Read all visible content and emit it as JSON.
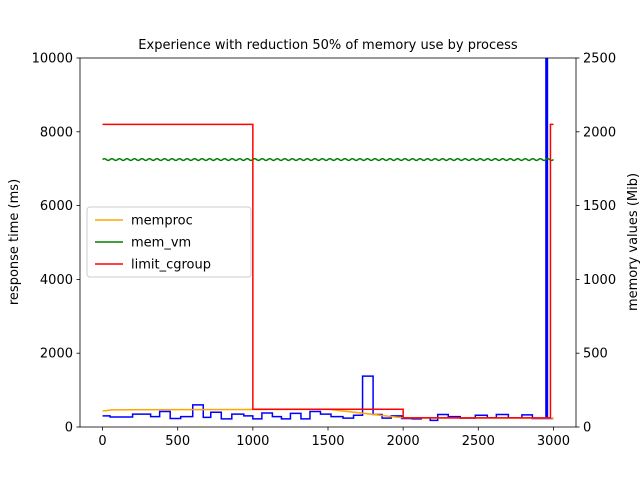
{
  "chart_data": {
    "type": "line",
    "title": "Experience with reduction 50% of memory use by process",
    "xlabel": "",
    "ylabel_left": "response time (ms)",
    "ylabel_right": "memory values (Mib)",
    "xlim": [
      -150,
      3150
    ],
    "ylim_left": [
      0,
      10000
    ],
    "ylim_right": [
      0,
      2500
    ],
    "x_ticks": [
      0,
      500,
      1000,
      1500,
      2000,
      2500,
      3000
    ],
    "y_left_ticks": [
      0,
      2000,
      4000,
      6000,
      8000,
      10000
    ],
    "y_right_ticks": [
      0,
      500,
      1000,
      1500,
      2000,
      2500
    ],
    "grid": false,
    "legend": {
      "placement": "center-left",
      "entries": [
        "memproc",
        "mem_vm",
        "limit_cgroup"
      ]
    },
    "series": [
      {
        "name": "memproc",
        "axis": "right",
        "color": "#ffa500",
        "kind": "line",
        "points": [
          [
            0,
            108
          ],
          [
            30,
            112
          ],
          [
            60,
            116
          ],
          [
            500,
            118
          ],
          [
            1000,
            119
          ],
          [
            1500,
            120
          ],
          [
            2000,
            62
          ],
          [
            2050,
            62
          ],
          [
            3000,
            60
          ]
        ]
      },
      {
        "name": "mem_vm",
        "axis": "right",
        "color": "#008000",
        "kind": "wave",
        "x_range": [
          0,
          3000
        ],
        "mean": 1812,
        "amplitude": 6,
        "period": 50
      },
      {
        "name": "limit_cgroup",
        "axis": "right",
        "color": "#ff0000",
        "kind": "step",
        "points": [
          [
            0,
            2050
          ],
          [
            1000,
            2050
          ],
          [
            1000,
            120
          ],
          [
            2000,
            120
          ],
          [
            2000,
            62
          ],
          [
            2980,
            62
          ],
          [
            2980,
            2050
          ],
          [
            3000,
            2050
          ]
        ]
      },
      {
        "name": "",
        "axis": "left",
        "color": "#0000ff",
        "kind": "step",
        "points": [
          [
            0,
            300
          ],
          [
            50,
            270
          ],
          [
            200,
            350
          ],
          [
            320,
            280
          ],
          [
            380,
            420
          ],
          [
            450,
            230
          ],
          [
            520,
            280
          ],
          [
            600,
            600
          ],
          [
            670,
            260
          ],
          [
            720,
            400
          ],
          [
            790,
            220
          ],
          [
            860,
            350
          ],
          [
            940,
            300
          ],
          [
            1000,
            220
          ],
          [
            1060,
            380
          ],
          [
            1130,
            280
          ],
          [
            1190,
            220
          ],
          [
            1250,
            370
          ],
          [
            1320,
            220
          ],
          [
            1380,
            420
          ],
          [
            1450,
            350
          ],
          [
            1520,
            280
          ],
          [
            1600,
            240
          ],
          [
            1670,
            320
          ],
          [
            1730,
            1380
          ],
          [
            1800,
            340
          ],
          [
            1860,
            240
          ],
          [
            1920,
            300
          ],
          [
            1990,
            230
          ],
          [
            2060,
            220
          ],
          [
            2120,
            250
          ],
          [
            2180,
            180
          ],
          [
            2230,
            340
          ],
          [
            2300,
            280
          ],
          [
            2380,
            240
          ],
          [
            2480,
            320
          ],
          [
            2560,
            250
          ],
          [
            2620,
            340
          ],
          [
            2700,
            250
          ],
          [
            2790,
            330
          ],
          [
            2860,
            230
          ],
          [
            2950,
            230
          ],
          [
            2950,
            10000
          ],
          [
            2960,
            10000
          ],
          [
            2960,
            230
          ],
          [
            3000,
            230
          ]
        ]
      }
    ]
  }
}
